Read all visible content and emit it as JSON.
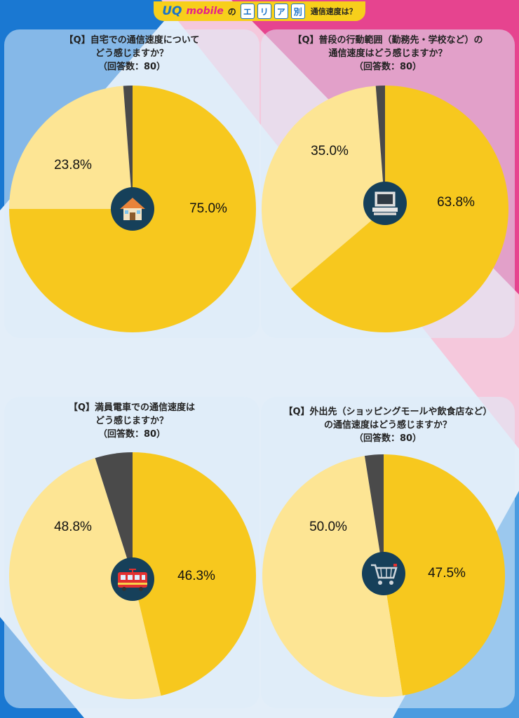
{
  "header": {
    "brand": "UQ",
    "brand_sub": "mobile",
    "no": "の",
    "area_chars": [
      "エ",
      "リ",
      "ア",
      "別"
    ],
    "tail": "通信速度は？"
  },
  "colors": {
    "good": "#f7c81e",
    "normal": "#fde594",
    "bad": "#4a4a4a",
    "badge": "#16405a"
  },
  "chart_data": [
    {
      "type": "pie",
      "title_lines": [
        "【Q】自宅での通信速度について",
        "どう感じますか？",
        "（回答数：80）"
      ],
      "icon": "house-icon",
      "slices": [
        {
          "value": 75.0,
          "label": "75.0%",
          "color": "#f7c81e"
        },
        {
          "value": 23.8,
          "label": "23.8%",
          "color": "#fde594"
        },
        {
          "value": 1.2,
          "label": "",
          "color": "#4a4a4a"
        }
      ]
    },
    {
      "type": "pie",
      "title_lines": [
        "【Q】普段の行動範囲（勤務先・学校など）の",
        "通信速度はどう感じますか？",
        "（回答数：80）"
      ],
      "icon": "computer-icon",
      "slices": [
        {
          "value": 63.8,
          "label": "63.8%",
          "color": "#f7c81e"
        },
        {
          "value": 35.0,
          "label": "35.0%",
          "color": "#fde594"
        },
        {
          "value": 1.2,
          "label": "",
          "color": "#4a4a4a"
        }
      ]
    },
    {
      "type": "pie",
      "title_lines": [
        "【Q】満員電車での通信速度は",
        "どう感じますか？",
        "（回答数：80）"
      ],
      "icon": "train-icon",
      "slices": [
        {
          "value": 46.3,
          "label": "46.3%",
          "color": "#f7c81e"
        },
        {
          "value": 48.8,
          "label": "48.8%",
          "color": "#fde594"
        },
        {
          "value": 4.9,
          "label": "",
          "color": "#4a4a4a"
        }
      ]
    },
    {
      "type": "pie",
      "title_lines": [
        "【Q】外出先（ショッピングモールや飲食店など）",
        "の通信速度はどう感じますか？",
        "（回答数：80）"
      ],
      "icon": "shopping-cart-icon",
      "slices": [
        {
          "value": 47.5,
          "label": "47.5%",
          "color": "#f7c81e"
        },
        {
          "value": 50.0,
          "label": "50.0%",
          "color": "#fde594"
        },
        {
          "value": 2.5,
          "label": "",
          "color": "#4a4a4a"
        }
      ]
    }
  ]
}
